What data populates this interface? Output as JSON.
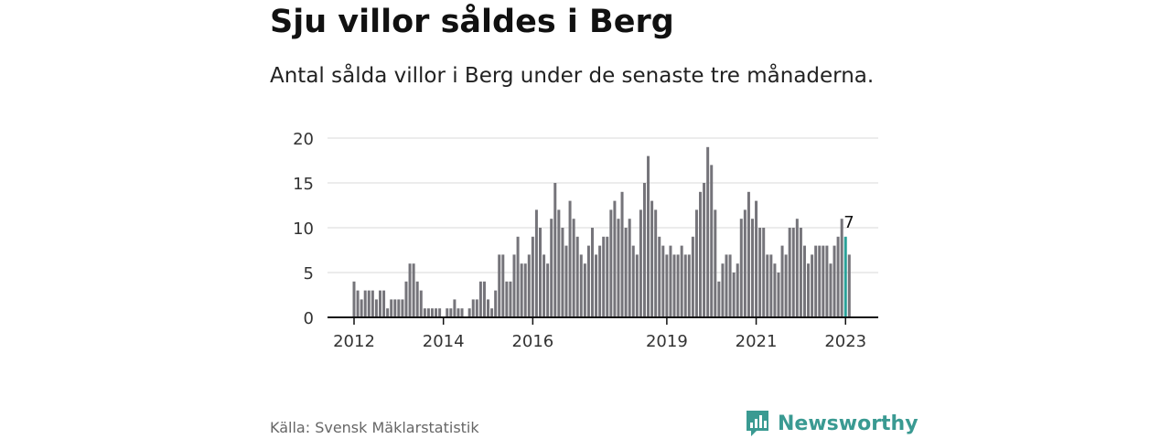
{
  "header": {
    "title": "Sju villor såldes i Berg",
    "subtitle": "Antal sålda villor i Berg under de senaste tre månaderna."
  },
  "footer": {
    "source": "Källa: Svensk Mäklarstatistik",
    "brand": "Newsworthy"
  },
  "colors": {
    "bar": "#75747a",
    "highlight": "#2aa198",
    "grid": "#d9d9d9",
    "axis": "#111111",
    "brand": "#3a9a92"
  },
  "icons": {
    "brand_logo": "newsworthy-chart-bubble-icon"
  },
  "chart_data": {
    "type": "bar",
    "title": "Sju villor såldes i Berg",
    "xlabel": "",
    "ylabel": "",
    "ylim": [
      0,
      20
    ],
    "y_ticks": [
      0,
      5,
      10,
      15,
      20
    ],
    "grid": true,
    "x_tick_labels": [
      {
        "label": "2012",
        "index": 0
      },
      {
        "label": "2014",
        "index": 24
      },
      {
        "label": "2016",
        "index": 48
      },
      {
        "label": "2019",
        "index": 84
      },
      {
        "label": "2021",
        "index": 108
      },
      {
        "label": "2023",
        "index": 132
      }
    ],
    "highlight_index": 132,
    "last_value_label": "7",
    "values": [
      4,
      3,
      2,
      3,
      3,
      3,
      2,
      3,
      3,
      1,
      2,
      2,
      2,
      2,
      4,
      6,
      6,
      4,
      3,
      1,
      1,
      1,
      1,
      1,
      0,
      1,
      1,
      2,
      1,
      1,
      0,
      1,
      2,
      2,
      4,
      4,
      2,
      1,
      3,
      7,
      7,
      4,
      4,
      7,
      9,
      6,
      6,
      7,
      9,
      12,
      10,
      7,
      6,
      11,
      15,
      12,
      10,
      8,
      13,
      11,
      9,
      7,
      6,
      8,
      10,
      7,
      8,
      9,
      9,
      12,
      13,
      11,
      14,
      10,
      11,
      8,
      7,
      12,
      15,
      18,
      13,
      12,
      9,
      8,
      7,
      8,
      7,
      7,
      8,
      7,
      7,
      9,
      12,
      14,
      15,
      19,
      17,
      12,
      4,
      6,
      7,
      7,
      5,
      6,
      11,
      12,
      14,
      11,
      13,
      10,
      10,
      7,
      7,
      6,
      5,
      8,
      7,
      10,
      10,
      11,
      10,
      8,
      6,
      7,
      8,
      8,
      8,
      8,
      6,
      8,
      9,
      11,
      9,
      7
    ]
  }
}
